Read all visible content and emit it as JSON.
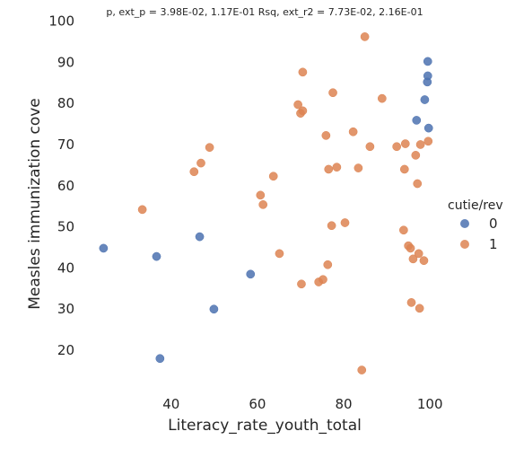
{
  "chart_data": {
    "type": "scatter",
    "title": "p, ext_p = 3.98E-02, 1.17E-01 Rsq, ext_r2 = 7.73E-02, 2.16E-01",
    "xlabel": "Literacy_rate_youth_total",
    "ylabel": "Measles immunization cove",
    "xlim": [
      20,
      110
    ],
    "ylim": [
      10,
      100
    ],
    "xticks": [
      "40",
      "60",
      "80",
      "100"
    ],
    "xtick_values": [
      40,
      60,
      80,
      100
    ],
    "yticks": [
      "20",
      "30",
      "40",
      "50",
      "60",
      "70",
      "80",
      "90",
      "100"
    ],
    "ytick_values": [
      20,
      30,
      40,
      50,
      60,
      70,
      80,
      90,
      100
    ],
    "grid": false,
    "legend": {
      "title": "cutie/rev",
      "placement": "right",
      "entries": [
        "0",
        "1"
      ]
    },
    "series": [
      {
        "name": "0",
        "color": "#4c72b0",
        "points": [
          [
            24.3,
            44.8
          ],
          [
            36.6,
            42.8
          ],
          [
            37.4,
            18.0
          ],
          [
            46.6,
            47.6
          ],
          [
            49.9,
            30.0
          ],
          [
            58.4,
            38.5
          ],
          [
            96.9,
            75.9
          ],
          [
            98.8,
            80.9
          ],
          [
            99.4,
            85.2
          ],
          [
            99.5,
            86.7
          ],
          [
            99.7,
            74.0
          ],
          [
            99.5,
            90.2
          ]
        ]
      },
      {
        "name": "1",
        "color": "#dd8452",
        "points": [
          [
            33.3,
            54.2
          ],
          [
            45.3,
            63.4
          ],
          [
            46.9,
            65.5
          ],
          [
            48.9,
            69.3
          ],
          [
            60.7,
            57.7
          ],
          [
            61.3,
            55.4
          ],
          [
            63.7,
            62.3
          ],
          [
            65.1,
            43.5
          ],
          [
            69.4,
            79.7
          ],
          [
            70.0,
            77.6
          ],
          [
            70.5,
            78.2
          ],
          [
            70.5,
            87.6
          ],
          [
            70.2,
            36.1
          ],
          [
            74.2,
            36.6
          ],
          [
            75.2,
            37.2
          ],
          [
            75.9,
            72.2
          ],
          [
            76.3,
            40.8
          ],
          [
            76.5,
            64.0
          ],
          [
            77.2,
            50.3
          ],
          [
            77.5,
            82.6
          ],
          [
            78.4,
            64.5
          ],
          [
            80.3,
            51.0
          ],
          [
            82.2,
            73.1
          ],
          [
            83.4,
            64.3
          ],
          [
            84.2,
            15.2
          ],
          [
            84.9,
            96.2
          ],
          [
            86.1,
            69.5
          ],
          [
            88.9,
            81.2
          ],
          [
            92.3,
            69.5
          ],
          [
            93.9,
            49.2
          ],
          [
            94.1,
            64.0
          ],
          [
            94.3,
            70.2
          ],
          [
            95.0,
            45.4
          ],
          [
            95.5,
            44.8
          ],
          [
            95.7,
            31.6
          ],
          [
            96.1,
            42.2
          ],
          [
            96.7,
            67.4
          ],
          [
            97.1,
            60.5
          ],
          [
            97.4,
            43.5
          ],
          [
            97.6,
            30.2
          ],
          [
            97.8,
            70.0
          ],
          [
            98.6,
            41.8
          ],
          [
            99.6,
            70.8
          ]
        ]
      }
    ]
  }
}
